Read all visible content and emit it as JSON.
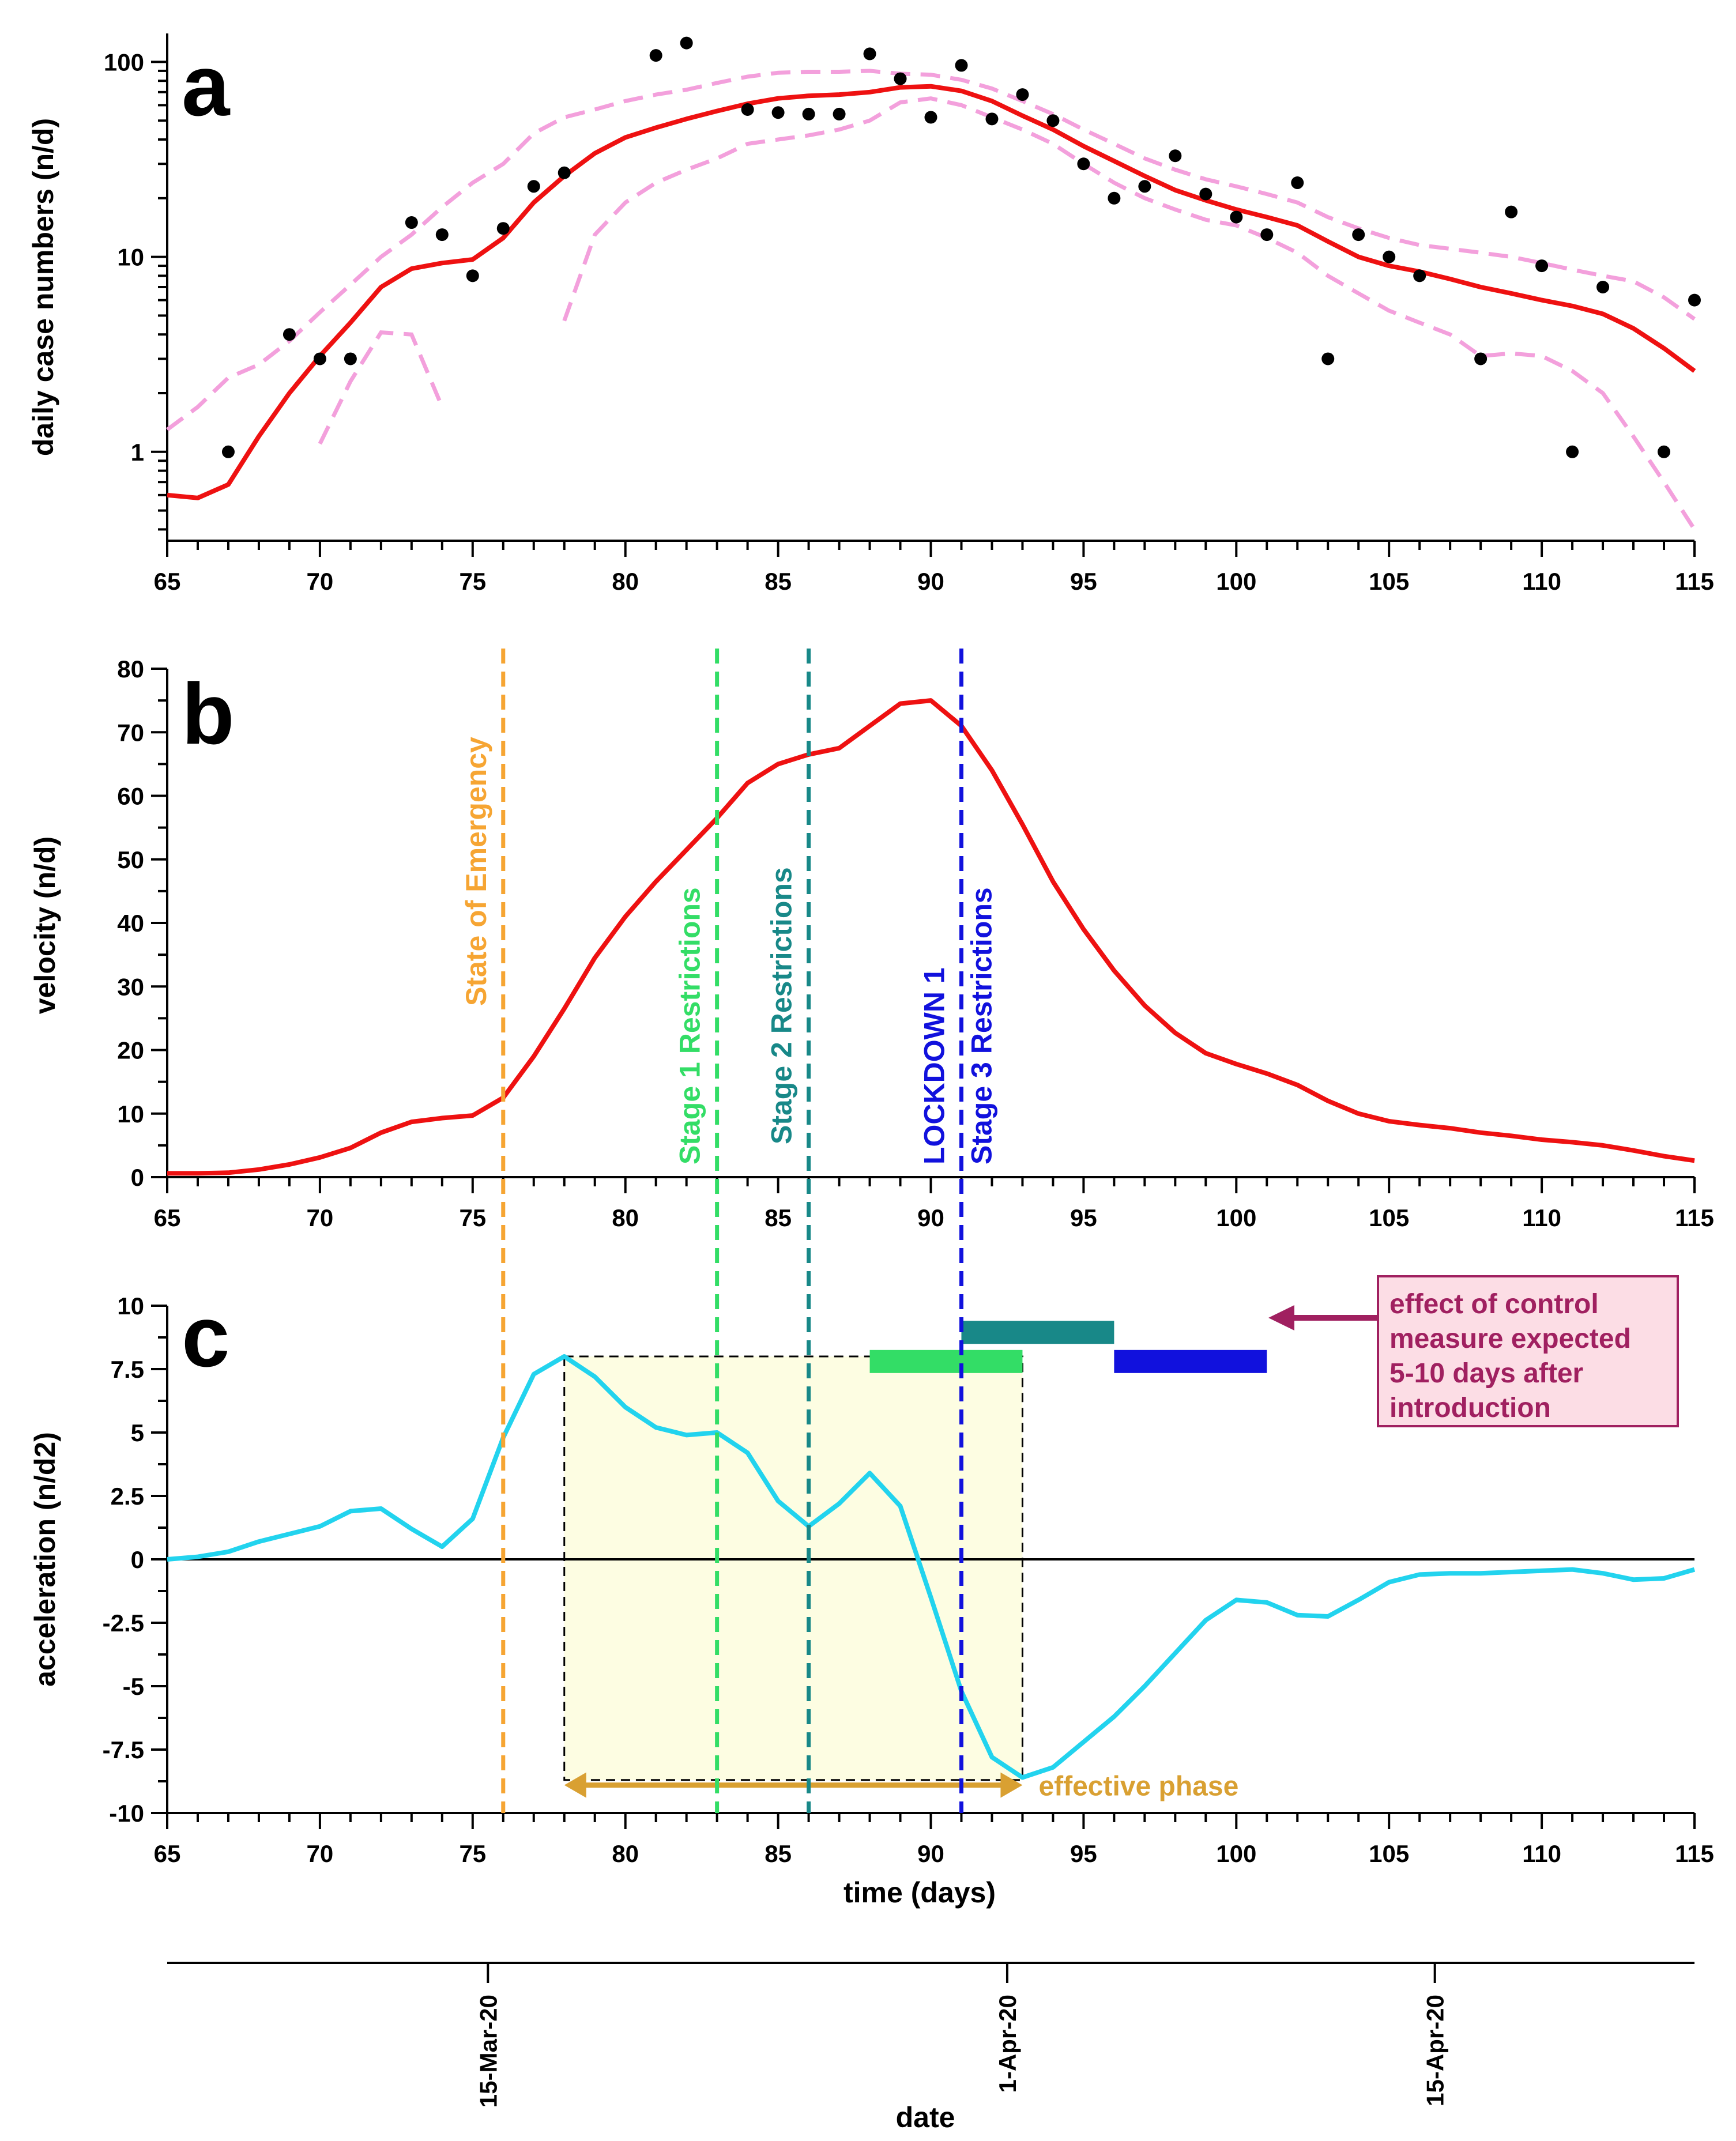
{
  "colors": {
    "cases_fit": "#ee1111",
    "ci": "#f3a0dc",
    "points": "#000000",
    "velocity": "#ee1111",
    "acceleration": "#22d3ee",
    "emergency": "#f6a533",
    "stage1": "#33dd66",
    "stage2": "#188888",
    "stage3": "#1111dd",
    "effective": "#d9a032",
    "window": "#fdfde2",
    "annotation_text": "#a02060",
    "annotation_box": "#fcdde5",
    "annotation_border": "#a02060"
  },
  "chart_data": [
    {
      "panel": "a",
      "type": "scatter",
      "ylabel": "daily case numbers (n/d)",
      "yscale": "log",
      "xlim": [
        65,
        115
      ],
      "ylim": [
        0.35,
        140
      ],
      "x_ticks": [
        "65",
        "70",
        "75",
        "80",
        "85",
        "90",
        "95",
        "100",
        "105",
        "110",
        "115"
      ],
      "y_ticks": [
        "1",
        "10",
        "100"
      ],
      "points": {
        "x": [
          67,
          69,
          70,
          71,
          73,
          74,
          75,
          76,
          77,
          78,
          81,
          82,
          84,
          85,
          86,
          87,
          88,
          89,
          90,
          91,
          92,
          93,
          94,
          95,
          96,
          97,
          98,
          99,
          100,
          101,
          102,
          103,
          104,
          105,
          106,
          108,
          109,
          110,
          111,
          112,
          114,
          115
        ],
        "y": [
          1,
          4,
          3,
          3,
          15,
          13,
          8,
          14,
          23,
          27,
          108,
          125,
          57,
          55,
          54,
          54,
          110,
          82,
          52,
          96,
          51,
          68,
          50,
          30,
          20,
          23,
          33,
          21,
          16,
          13,
          24,
          3,
          13,
          10,
          8,
          3,
          17,
          9,
          1,
          7,
          1,
          6
        ]
      },
      "fit": {
        "x": [
          65,
          66,
          67,
          68,
          69,
          70,
          71,
          72,
          73,
          74,
          75,
          76,
          77,
          78,
          79,
          80,
          81,
          82,
          83,
          84,
          85,
          86,
          87,
          88,
          89,
          90,
          91,
          92,
          93,
          94,
          95,
          96,
          97,
          98,
          99,
          100,
          101,
          102,
          103,
          104,
          105,
          106,
          107,
          108,
          109,
          110,
          111,
          112,
          113,
          114,
          115
        ],
        "y": [
          0.6,
          0.58,
          0.68,
          1.2,
          2.0,
          3.1,
          4.6,
          7.0,
          8.7,
          9.3,
          9.7,
          12.5,
          19,
          26,
          34,
          41,
          46,
          51,
          56,
          61,
          65,
          67,
          68,
          70,
          74,
          75,
          71,
          63,
          53,
          45,
          37,
          31,
          26,
          22,
          19.5,
          17.5,
          16,
          14.5,
          12,
          10,
          9,
          8.4,
          7.7,
          7.0,
          6.5,
          6.0,
          5.6,
          5.1,
          4.3,
          3.4,
          2.6
        ]
      },
      "ci_upper": {
        "x": [
          65,
          66,
          67,
          68,
          69,
          70,
          71,
          72,
          73,
          74,
          75,
          76,
          77,
          78,
          79,
          80,
          81,
          82,
          83,
          84,
          85,
          86,
          87,
          88,
          89,
          90,
          91,
          92,
          93,
          94,
          95,
          96,
          97,
          98,
          99,
          100,
          101,
          102,
          103,
          104,
          105,
          106,
          107,
          108,
          109,
          110,
          111,
          112,
          113,
          114,
          115
        ],
        "y": [
          1.3,
          1.7,
          2.4,
          2.8,
          3.7,
          5.2,
          7.2,
          10.0,
          13.0,
          18.0,
          24,
          30,
          43,
          52,
          57,
          63,
          68,
          72,
          78,
          84,
          88,
          89,
          89,
          90,
          87,
          86,
          81,
          73,
          63,
          54,
          45,
          38,
          32,
          28,
          25,
          23,
          21,
          19,
          16,
          14,
          12.5,
          11.5,
          11,
          10.5,
          10,
          9.3,
          8.6,
          8.0,
          7.5,
          6.2,
          4.8
        ]
      },
      "ci_lower_1": {
        "x": [
          70,
          71,
          72,
          73,
          74
        ],
        "y": [
          1.1,
          2.3,
          4.1,
          4.0,
          1.7
        ]
      },
      "ci_lower_2": {
        "x": [
          78,
          79,
          80,
          81,
          82,
          83,
          84,
          85,
          86,
          87,
          88,
          89,
          90,
          91,
          92,
          93,
          94,
          95,
          96,
          97,
          98,
          99,
          100,
          101,
          102,
          103,
          104,
          105,
          106,
          107,
          108,
          109,
          110,
          111,
          112,
          113,
          114,
          115
        ],
        "y": [
          4.7,
          13,
          19,
          24,
          28,
          32,
          38,
          40,
          42,
          45,
          50,
          62,
          65,
          60,
          52,
          45,
          38,
          30,
          24,
          20,
          17.5,
          15.5,
          14.5,
          12.5,
          10.5,
          8,
          6.5,
          5.3,
          4.6,
          4.0,
          3.1,
          3.2,
          3.1,
          2.6,
          2.0,
          1.2,
          0.7,
          0.4
        ]
      }
    },
    {
      "panel": "b",
      "type": "line",
      "ylabel": "velocity (n/d)",
      "xlim": [
        65,
        115
      ],
      "ylim": [
        0,
        80
      ],
      "x_ticks": [
        "65",
        "70",
        "75",
        "80",
        "85",
        "90",
        "95",
        "100",
        "105",
        "110",
        "115"
      ],
      "y_ticks": [
        "0",
        "10",
        "20",
        "30",
        "40",
        "50",
        "60",
        "70",
        "80"
      ],
      "x": [
        65,
        66,
        67,
        68,
        69,
        70,
        71,
        72,
        73,
        74,
        75,
        76,
        77,
        78,
        79,
        80,
        81,
        82,
        83,
        84,
        85,
        86,
        87,
        88,
        89,
        90,
        91,
        92,
        93,
        94,
        95,
        96,
        97,
        98,
        99,
        100,
        101,
        102,
        103,
        104,
        105,
        106,
        107,
        108,
        109,
        110,
        111,
        112,
        113,
        114,
        115
      ],
      "y": [
        0.6,
        0.6,
        0.7,
        1.2,
        2.0,
        3.1,
        4.6,
        7.0,
        8.7,
        9.3,
        9.7,
        12.5,
        19,
        26.5,
        34.5,
        41,
        46.5,
        51.5,
        56.5,
        62,
        65,
        66.5,
        67.5,
        71,
        74.5,
        75,
        71,
        64,
        55.5,
        46.5,
        39,
        32.5,
        27,
        22.7,
        19.5,
        17.8,
        16.3,
        14.5,
        12,
        10,
        8.8,
        8.2,
        7.7,
        7.0,
        6.5,
        5.9,
        5.5,
        5.0,
        4.2,
        3.3,
        2.6
      ]
    },
    {
      "panel": "c",
      "type": "line",
      "ylabel": "acceleration (n/d2)",
      "xlabel": "time (days)",
      "xlim": [
        65,
        115
      ],
      "ylim": [
        -10,
        10
      ],
      "x_ticks": [
        "65",
        "70",
        "75",
        "80",
        "85",
        "90",
        "95",
        "100",
        "105",
        "110",
        "115"
      ],
      "y_ticks": [
        "10",
        "7.5",
        "5",
        "2.5",
        "0",
        "-2.5",
        "-5",
        "-7.5",
        "-10"
      ],
      "x": [
        65,
        66,
        67,
        68,
        69,
        70,
        71,
        72,
        73,
        74,
        75,
        76,
        77,
        78,
        79,
        80,
        81,
        82,
        83,
        84,
        85,
        86,
        87,
        88,
        89,
        90,
        91,
        92,
        93,
        94,
        95,
        96,
        97,
        98,
        99,
        100,
        101,
        102,
        103,
        104,
        105,
        106,
        107,
        108,
        109,
        110,
        111,
        112,
        113,
        114,
        115
      ],
      "y": [
        0,
        0.1,
        0.3,
        0.7,
        1.0,
        1.3,
        1.9,
        2.0,
        1.2,
        0.5,
        1.6,
        4.8,
        7.3,
        8.0,
        7.2,
        6.0,
        5.2,
        4.9,
        5.0,
        4.2,
        2.3,
        1.3,
        2.2,
        3.4,
        2.1,
        -1.5,
        -5.2,
        -7.8,
        -8.6,
        -8.2,
        -7.2,
        -6.2,
        -5.0,
        -3.7,
        -2.4,
        -1.6,
        -1.7,
        -2.2,
        -2.25,
        -1.6,
        -0.9,
        -0.6,
        -0.55,
        -0.55,
        -0.5,
        -0.45,
        -0.4,
        -0.55,
        -0.8,
        -0.75,
        -0.4
      ]
    },
    {
      "panel": "date-axis",
      "type": "line",
      "xlabel": "date",
      "ticks": [
        {
          "x": 75.5,
          "label": "15-Mar-20"
        },
        {
          "x": 92.5,
          "label": "1-Apr-20"
        },
        {
          "x": 106.5,
          "label": "15-Apr-20"
        }
      ]
    }
  ],
  "panel_letters": {
    "a": "a",
    "b": "b",
    "c": "c"
  },
  "events": [
    {
      "day": 76,
      "label": "State of Emergency",
      "key": "emergency"
    },
    {
      "day": 83,
      "label": "Stage 1 Restrictions",
      "key": "stage1"
    },
    {
      "day": 86,
      "label": "Stage 2 Restrictions",
      "key": "stage2"
    },
    {
      "day": 91,
      "label": "LOCKDOWN 1",
      "label2": "Stage 3 Restrictions",
      "key": "stage3"
    }
  ],
  "effect_windows": [
    {
      "key": "stage1",
      "from": 88,
      "to": 93,
      "y": 7.8
    },
    {
      "key": "stage2",
      "from": 91,
      "to": 96,
      "y": 8.95
    },
    {
      "key": "stage3",
      "from": 96,
      "to": 101,
      "y": 7.8
    }
  ],
  "effective_window": {
    "from": 78,
    "to": 93,
    "ytop": 8.0,
    "ybottom": -8.7
  },
  "effective_phase": {
    "label": "effective phase",
    "from": 78,
    "to": 93,
    "y": -8.9
  },
  "annotation": {
    "lines": [
      "effect of control",
      "measure expected",
      "5-10 days after",
      "introduction"
    ]
  }
}
